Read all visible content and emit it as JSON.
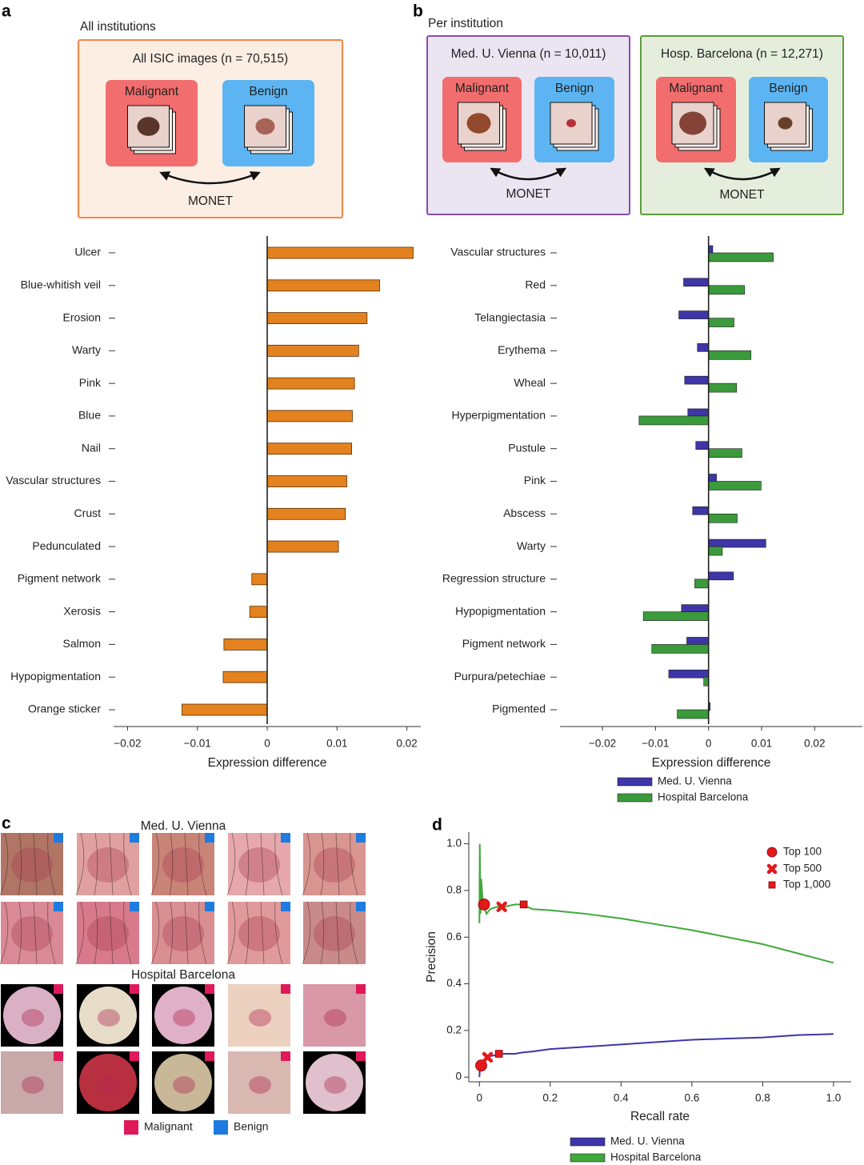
{
  "panel_labels": [
    "a",
    "b",
    "c",
    "d"
  ],
  "schematics": [
    {
      "heading": "All institutions",
      "boxes": [
        {
          "title": "All ISIC images (n = 70,515)",
          "malignant": "Malignant",
          "benign": "Benign",
          "model": "MONET"
        }
      ]
    },
    {
      "heading": "Per institution",
      "boxes": [
        {
          "title": "Med. U. Vienna (n = 10,011)",
          "malignant": "Malignant",
          "benign": "Benign",
          "model": "MONET"
        },
        {
          "title": "Hosp. Barcelona (n = 12,271)",
          "malignant": "Malignant",
          "benign": "Benign",
          "model": "MONET"
        }
      ]
    }
  ],
  "image_grid": {
    "groups": [
      "Med. U. Vienna",
      "Hospital Barcelona"
    ],
    "legend": [
      {
        "name": "Malignant",
        "color": "#e0195a"
      },
      {
        "name": "Benign",
        "color": "#1e7be0"
      }
    ]
  },
  "chart_data": [
    {
      "type": "hbar",
      "categories": [
        "Ulcer",
        "Blue-whitish veil",
        "Erosion",
        "Warty",
        "Pink",
        "Blue",
        "Nail",
        "Vascular structures",
        "Crust",
        "Pedunculated",
        "Pigment network",
        "Xerosis",
        "Salmon",
        "Hypopigmentation",
        "Orange sticker"
      ],
      "values": [
        0.0209,
        0.0161,
        0.0143,
        0.0131,
        0.0125,
        0.0122,
        0.0121,
        0.0114,
        0.0112,
        0.0102,
        -0.0022,
        -0.0025,
        -0.0062,
        -0.0063,
        -0.0122
      ],
      "color": "#e4821f",
      "xlim": [
        -0.022,
        0.022
      ],
      "xticks": [
        {
          "value": -0.02,
          "label": "−0.02"
        },
        {
          "value": -0.01,
          "label": "−0.01"
        },
        0,
        0.01,
        0.02
      ],
      "xlabel": "Expression difference"
    },
    {
      "type": "grouped_hbar",
      "categories": [
        "Vascular structures",
        "Red",
        "Telangiectasia",
        "Erythema",
        "Wheal",
        "Hyperpigmentation",
        "Pustule",
        "Pink",
        "Abscess",
        "Warty",
        "Regression structure",
        "Hypopigmentation",
        "Pigment network",
        "Purpura/petechiae",
        "Pigmented"
      ],
      "series": [
        {
          "name": "Med. U. Vienna",
          "color": "#3d35a8",
          "values": [
            0.0008,
            -0.0047,
            -0.0056,
            -0.0021,
            -0.0045,
            -0.0039,
            -0.0024,
            0.0015,
            -0.003,
            0.0108,
            0.0047,
            -0.0051,
            -0.0041,
            -0.0075,
            0.0003
          ]
        },
        {
          "name": "Hospital Barcelona",
          "color": "#3b9a3b",
          "values": [
            0.0122,
            0.0068,
            0.0048,
            0.008,
            0.0053,
            -0.0131,
            0.0063,
            0.0099,
            0.0054,
            0.0026,
            -0.0026,
            -0.0123,
            -0.0107,
            -0.0009,
            -0.0059
          ]
        }
      ],
      "xlim": [
        -0.028,
        0.029
      ],
      "xticks": [
        {
          "value": -0.02,
          "label": "−0.02"
        },
        {
          "value": -0.01,
          "label": "−0.01"
        },
        0,
        0.01,
        0.02
      ],
      "xlabel": "Expression difference",
      "legend": "below"
    },
    {
      "type": "line",
      "x": [
        0,
        0.001,
        0.003,
        0.005,
        0.01,
        0.02,
        0.03,
        0.05,
        0.07,
        0.1,
        0.12,
        0.15,
        0.2,
        0.3,
        0.4,
        0.5,
        0.6,
        0.7,
        0.8,
        0.9,
        1.0
      ],
      "series": [
        {
          "name": "Med. U. Vienna",
          "color": "#3d35a8",
          "values": [
            0.0,
            0.03,
            0.05,
            0.06,
            0.07,
            0.08,
            0.09,
            0.095,
            0.1,
            0.1,
            0.105,
            0.11,
            0.12,
            0.13,
            0.14,
            0.15,
            0.16,
            0.165,
            0.17,
            0.18,
            0.185
          ]
        },
        {
          "name": "Hospital Barcelona",
          "color": "#3fa83a",
          "values": [
            0.66,
            1.0,
            0.7,
            0.85,
            0.74,
            0.7,
            0.72,
            0.73,
            0.73,
            0.74,
            0.74,
            0.72,
            0.715,
            0.7,
            0.68,
            0.655,
            0.63,
            0.6,
            0.57,
            0.53,
            0.49
          ]
        }
      ],
      "markers": [
        {
          "name": "Top 100",
          "shape": "circle",
          "color": "#e3191c",
          "x": [
            0.013,
            0.005
          ],
          "y": [
            0.74,
            0.05
          ]
        },
        {
          "name": "Top 500",
          "shape": "cross",
          "color": "#e3191c",
          "x": [
            0.063,
            0.023
          ],
          "y": [
            0.73,
            0.085
          ]
        },
        {
          "name": "Top 1,000",
          "shape": "square",
          "color": "#e3191c",
          "x": [
            0.125,
            0.055
          ],
          "y": [
            0.74,
            0.1
          ]
        }
      ],
      "xlim": [
        -0.03,
        1.05
      ],
      "ylim": [
        -0.02,
        1.05
      ],
      "xticks": [
        0,
        0.2,
        0.4,
        0.6,
        0.8,
        {
          "value": 1.0,
          "label": "1.0"
        }
      ],
      "yticks": [
        0,
        0.2,
        0.4,
        0.6,
        0.8,
        {
          "value": 1.0,
          "label": "1.0"
        }
      ],
      "xlabel": "Recall rate",
      "ylabel": "Precision",
      "legend": "below",
      "marker_legend": "upper right"
    }
  ]
}
